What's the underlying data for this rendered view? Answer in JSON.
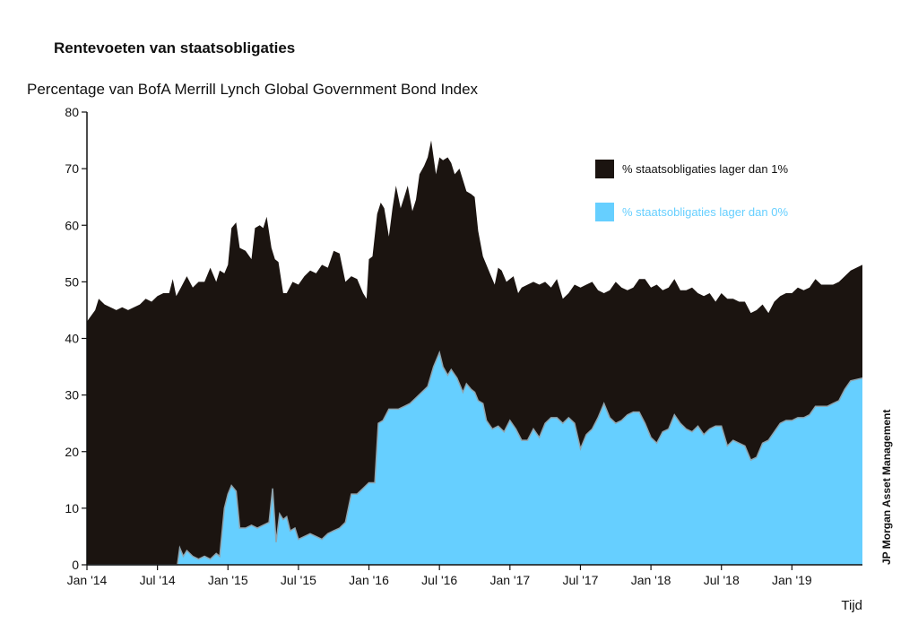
{
  "title": "Rentevoeten van staatsobligaties",
  "subtitle": "Percentage van BofA Merrill Lynch Global Government Bond Index",
  "source": "JP Morgan Asset Management",
  "colors": {
    "series1": "#1b1410",
    "series2": "#66cfff",
    "axis": "#111111"
  },
  "chart_data": {
    "type": "area",
    "title": "Rentevoeten van staatsobligaties",
    "subtitle": "Percentage van BofA Merrill Lynch Global Government Bond Index",
    "xlabel": "Tijd",
    "ylabel": "",
    "ylim": [
      0,
      80
    ],
    "yticks": [
      0,
      10,
      20,
      30,
      40,
      50,
      60,
      70,
      80
    ],
    "xlim": [
      0,
      66
    ],
    "xticks": [
      {
        "x": 0,
        "label": "Jan '14"
      },
      {
        "x": 6,
        "label": "Jul '14"
      },
      {
        "x": 12,
        "label": "Jan '15"
      },
      {
        "x": 18,
        "label": "Jul '15"
      },
      {
        "x": 24,
        "label": "Jan '16"
      },
      {
        "x": 30,
        "label": "Jul '16"
      },
      {
        "x": 36,
        "label": "Jan '17"
      },
      {
        "x": 42,
        "label": "Jul '17"
      },
      {
        "x": 48,
        "label": "Jan '18"
      },
      {
        "x": 54,
        "label": "Jul '18"
      },
      {
        "x": 60,
        "label": "Jan '19"
      }
    ],
    "legend_position": "top-right",
    "series": [
      {
        "name": "% staatsobligaties lager dan 1%",
        "color": "#1b1410",
        "points": [
          [
            0,
            43
          ],
          [
            0.7,
            45
          ],
          [
            1,
            47
          ],
          [
            1.5,
            46
          ],
          [
            2,
            45.5
          ],
          [
            2.5,
            45
          ],
          [
            3,
            45.5
          ],
          [
            3.5,
            45
          ],
          [
            4,
            45.5
          ],
          [
            4.5,
            46
          ],
          [
            5,
            47
          ],
          [
            5.5,
            46.5
          ],
          [
            6,
            47.5
          ],
          [
            6.5,
            48
          ],
          [
            7,
            48
          ],
          [
            7.3,
            50.5
          ],
          [
            7.6,
            47.5
          ],
          [
            8,
            49
          ],
          [
            8.5,
            51
          ],
          [
            9,
            49
          ],
          [
            9.5,
            50
          ],
          [
            10,
            50
          ],
          [
            10.5,
            52.5
          ],
          [
            11,
            50
          ],
          [
            11.3,
            52
          ],
          [
            11.7,
            51.5
          ],
          [
            12,
            53
          ],
          [
            12.3,
            59.5
          ],
          [
            12.7,
            60.5
          ],
          [
            13,
            56
          ],
          [
            13.5,
            55.5
          ],
          [
            14,
            54
          ],
          [
            14.3,
            59.5
          ],
          [
            14.7,
            60
          ],
          [
            15,
            59.5
          ],
          [
            15.3,
            61.5
          ],
          [
            15.7,
            56
          ],
          [
            16,
            54
          ],
          [
            16.3,
            53.5
          ],
          [
            16.7,
            48
          ],
          [
            17,
            48
          ],
          [
            17.5,
            50
          ],
          [
            18,
            49.5
          ],
          [
            18.5,
            51
          ],
          [
            19,
            52
          ],
          [
            19.5,
            51.5
          ],
          [
            20,
            53
          ],
          [
            20.5,
            52.5
          ],
          [
            21,
            55.5
          ],
          [
            21.5,
            55
          ],
          [
            22,
            50
          ],
          [
            22.5,
            51
          ],
          [
            23,
            50.5
          ],
          [
            23.5,
            48
          ],
          [
            23.8,
            47
          ],
          [
            24,
            54
          ],
          [
            24.3,
            54.5
          ],
          [
            24.7,
            62
          ],
          [
            25,
            64
          ],
          [
            25.3,
            63
          ],
          [
            25.7,
            58
          ],
          [
            26,
            63
          ],
          [
            26.3,
            67
          ],
          [
            26.7,
            63
          ],
          [
            27,
            65
          ],
          [
            27.3,
            67
          ],
          [
            27.7,
            62.5
          ],
          [
            28,
            64.5
          ],
          [
            28.3,
            69
          ],
          [
            28.7,
            70.5
          ],
          [
            29,
            72
          ],
          [
            29.3,
            75
          ],
          [
            29.7,
            69
          ],
          [
            30,
            72
          ],
          [
            30.3,
            71.5
          ],
          [
            30.7,
            72
          ],
          [
            31,
            71
          ],
          [
            31.3,
            69
          ],
          [
            31.7,
            70
          ],
          [
            32,
            68
          ],
          [
            32.3,
            66
          ],
          [
            32.7,
            65.5
          ],
          [
            33,
            65
          ],
          [
            33.3,
            59
          ],
          [
            33.7,
            54.5
          ],
          [
            34,
            53
          ],
          [
            34.3,
            51.5
          ],
          [
            34.7,
            49.5
          ],
          [
            35,
            52.5
          ],
          [
            35.3,
            52
          ],
          [
            35.7,
            50
          ],
          [
            36,
            50.5
          ],
          [
            36.3,
            51
          ],
          [
            36.7,
            48
          ],
          [
            37,
            49
          ],
          [
            37.5,
            49.5
          ],
          [
            38,
            50
          ],
          [
            38.5,
            49.5
          ],
          [
            39,
            50
          ],
          [
            39.5,
            49
          ],
          [
            40,
            50.5
          ],
          [
            40.5,
            47
          ],
          [
            41,
            48
          ],
          [
            41.5,
            49.5
          ],
          [
            42,
            49
          ],
          [
            42.5,
            49.5
          ],
          [
            43,
            50
          ],
          [
            43.5,
            48.5
          ],
          [
            44,
            48
          ],
          [
            44.5,
            48.5
          ],
          [
            45,
            50
          ],
          [
            45.5,
            49
          ],
          [
            46,
            48.5
          ],
          [
            46.5,
            49
          ],
          [
            47,
            50.5
          ],
          [
            47.5,
            50.5
          ],
          [
            48,
            49
          ],
          [
            48.5,
            49.5
          ],
          [
            49,
            48.5
          ],
          [
            49.5,
            49
          ],
          [
            50,
            50.5
          ],
          [
            50.5,
            48.5
          ],
          [
            51,
            48.5
          ],
          [
            51.5,
            49
          ],
          [
            52,
            48
          ],
          [
            52.5,
            47.5
          ],
          [
            53,
            48
          ],
          [
            53.5,
            46.5
          ],
          [
            54,
            48
          ],
          [
            54.5,
            47
          ],
          [
            55,
            47
          ],
          [
            55.5,
            46.5
          ],
          [
            56,
            46.5
          ],
          [
            56.5,
            44.5
          ],
          [
            57,
            45
          ],
          [
            57.5,
            46
          ],
          [
            58,
            44.5
          ],
          [
            58.5,
            46.5
          ],
          [
            59,
            47.5
          ],
          [
            59.5,
            48
          ],
          [
            60,
            48
          ],
          [
            60.5,
            49
          ],
          [
            61,
            48.5
          ],
          [
            61.5,
            49
          ],
          [
            62,
            50.5
          ],
          [
            62.5,
            49.5
          ],
          [
            63,
            49.5
          ],
          [
            63.5,
            49.5
          ],
          [
            64,
            50
          ],
          [
            64.5,
            51
          ],
          [
            65,
            52
          ],
          [
            66,
            53
          ]
        ]
      },
      {
        "name": "% staatsobligaties lager dan 0%",
        "color": "#66cfff",
        "points": [
          [
            0,
            0
          ],
          [
            7.7,
            0
          ],
          [
            7.9,
            3
          ],
          [
            8.2,
            1.5
          ],
          [
            8.5,
            2.5
          ],
          [
            9,
            1.5
          ],
          [
            9.5,
            1
          ],
          [
            10,
            1.5
          ],
          [
            10.5,
            1
          ],
          [
            11,
            2
          ],
          [
            11.3,
            1.5
          ],
          [
            11.7,
            10
          ],
          [
            12,
            12.5
          ],
          [
            12.3,
            14
          ],
          [
            12.7,
            13
          ],
          [
            13,
            6.5
          ],
          [
            13.5,
            6.5
          ],
          [
            14,
            7
          ],
          [
            14.5,
            6.5
          ],
          [
            15,
            7
          ],
          [
            15.5,
            7.5
          ],
          [
            15.8,
            13.5
          ],
          [
            16.1,
            4
          ],
          [
            16.4,
            9
          ],
          [
            16.7,
            8
          ],
          [
            17,
            8.5
          ],
          [
            17.3,
            6
          ],
          [
            17.7,
            6.5
          ],
          [
            18,
            4.5
          ],
          [
            18.5,
            5
          ],
          [
            19,
            5.5
          ],
          [
            19.5,
            5
          ],
          [
            20,
            4.5
          ],
          [
            20.5,
            5.5
          ],
          [
            21,
            6
          ],
          [
            21.5,
            6.5
          ],
          [
            22,
            7.5
          ],
          [
            22.5,
            12.5
          ],
          [
            23,
            12.5
          ],
          [
            23.5,
            13.5
          ],
          [
            24,
            14.5
          ],
          [
            24.5,
            14.5
          ],
          [
            24.8,
            25
          ],
          [
            25.2,
            25.5
          ],
          [
            25.7,
            27.5
          ],
          [
            26,
            27.5
          ],
          [
            26.5,
            27.5
          ],
          [
            27,
            28
          ],
          [
            27.5,
            28.5
          ],
          [
            28,
            29.5
          ],
          [
            28.5,
            30.5
          ],
          [
            29,
            31.5
          ],
          [
            29.5,
            35
          ],
          [
            30,
            37.5
          ],
          [
            30.3,
            35
          ],
          [
            30.7,
            33.5
          ],
          [
            31,
            34.5
          ],
          [
            31.5,
            33
          ],
          [
            32,
            30.5
          ],
          [
            32.3,
            32
          ],
          [
            32.7,
            31
          ],
          [
            33,
            30.5
          ],
          [
            33.3,
            29
          ],
          [
            33.7,
            28.5
          ],
          [
            34,
            25.5
          ],
          [
            34.5,
            24
          ],
          [
            35,
            24.5
          ],
          [
            35.5,
            23.5
          ],
          [
            36,
            25.5
          ],
          [
            36.5,
            24
          ],
          [
            37,
            22
          ],
          [
            37.5,
            22
          ],
          [
            38,
            24
          ],
          [
            38.5,
            22.5
          ],
          [
            39,
            25
          ],
          [
            39.5,
            26
          ],
          [
            40,
            26
          ],
          [
            40.5,
            25
          ],
          [
            41,
            26
          ],
          [
            41.5,
            25
          ],
          [
            42,
            20.5
          ],
          [
            42.5,
            23
          ],
          [
            43,
            24
          ],
          [
            43.5,
            26
          ],
          [
            44,
            28.5
          ],
          [
            44.5,
            26
          ],
          [
            45,
            25
          ],
          [
            45.5,
            25.5
          ],
          [
            46,
            26.5
          ],
          [
            46.5,
            27
          ],
          [
            47,
            27
          ],
          [
            47.5,
            25
          ],
          [
            48,
            22.5
          ],
          [
            48.5,
            21.5
          ],
          [
            49,
            23.5
          ],
          [
            49.5,
            24
          ],
          [
            50,
            26.5
          ],
          [
            50.5,
            25
          ],
          [
            51,
            24
          ],
          [
            51.5,
            23.5
          ],
          [
            52,
            24.5
          ],
          [
            52.5,
            23
          ],
          [
            53,
            24
          ],
          [
            53.5,
            24.5
          ],
          [
            54,
            24.5
          ],
          [
            54.5,
            21
          ],
          [
            55,
            22
          ],
          [
            55.5,
            21.5
          ],
          [
            56,
            21
          ],
          [
            56.5,
            18.5
          ],
          [
            57,
            19
          ],
          [
            57.5,
            21.5
          ],
          [
            58,
            22
          ],
          [
            58.5,
            23.5
          ],
          [
            59,
            25
          ],
          [
            59.5,
            25.5
          ],
          [
            60,
            25.5
          ],
          [
            60.5,
            26
          ],
          [
            61,
            26
          ],
          [
            61.5,
            26.5
          ],
          [
            62,
            28
          ],
          [
            62.5,
            28
          ],
          [
            63,
            28
          ],
          [
            63.5,
            28.5
          ],
          [
            64,
            29
          ],
          [
            64.5,
            31
          ],
          [
            65,
            32.5
          ],
          [
            66,
            33
          ]
        ]
      }
    ]
  }
}
